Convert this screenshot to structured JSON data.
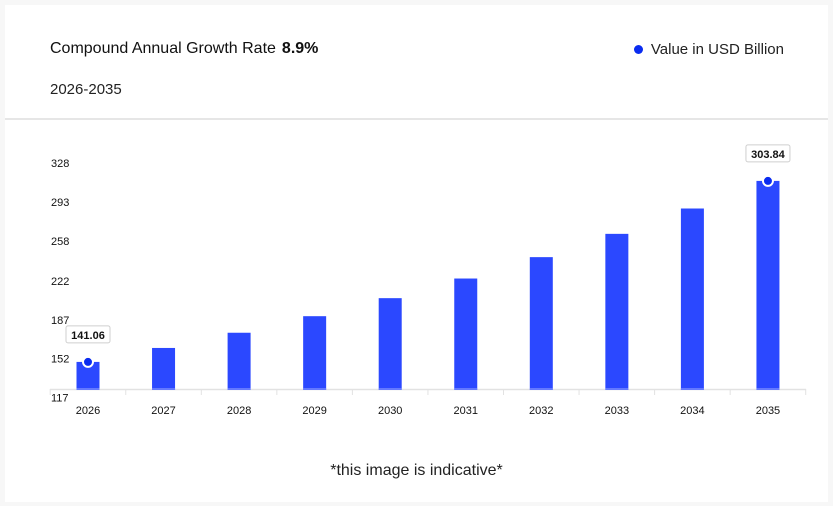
{
  "header": {
    "title": "Compound Annual Growth Rate",
    "cagr": "8.9%",
    "period": "2026-2035",
    "legend_label": "Value in USD Billion"
  },
  "colors": {
    "bar": "#2b48ff",
    "marker": "#0a2cf0"
  },
  "chart_data": {
    "type": "bar",
    "categories": [
      "2026",
      "2027",
      "2028",
      "2029",
      "2030",
      "2031",
      "2032",
      "2033",
      "2034",
      "2035"
    ],
    "series": [
      {
        "name": "Value in USD Billion",
        "values": [
          141.06,
          153.61,
          167.29,
          182.18,
          198.39,
          216.05,
          235.28,
          256.22,
          279.02,
          303.84
        ]
      }
    ],
    "yticks": [
      117,
      152,
      187,
      222,
      258,
      293,
      328
    ],
    "ylim": [
      117,
      328
    ],
    "data_labels": [
      {
        "category": "2026",
        "text": "141.06"
      },
      {
        "category": "2035",
        "text": "303.84"
      }
    ],
    "grid": false,
    "legend": "top-right"
  },
  "footer": {
    "note": "*this image is indicative*"
  }
}
